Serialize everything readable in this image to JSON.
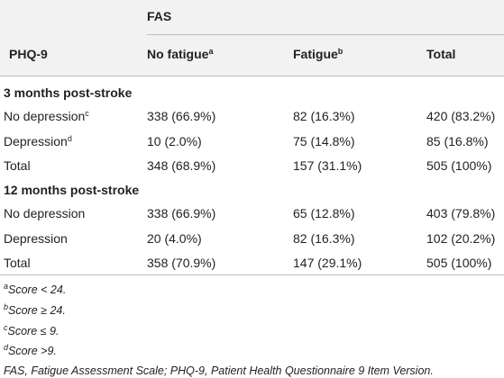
{
  "table": {
    "group_header": "FAS",
    "header": [
      {
        "text": "PHQ-9"
      },
      {
        "text": "No fatigue",
        "sup": "a"
      },
      {
        "text": "Fatigue",
        "sup": "b"
      },
      {
        "text": "Total"
      }
    ],
    "sections": [
      {
        "title": "3 months post-stroke",
        "rows": [
          {
            "label": "No depression",
            "sup": "c",
            "values": [
              "338 (66.9%)",
              "82 (16.3%)",
              "420 (83.2%)"
            ]
          },
          {
            "label": "Depression",
            "sup": "d",
            "values": [
              "10 (2.0%)",
              "75 (14.8%)",
              "85 (16.8%)"
            ]
          },
          {
            "label": "Total",
            "values": [
              "348 (68.9%)",
              "157 (31.1%)",
              "505 (100%)"
            ]
          }
        ]
      },
      {
        "title": "12 months post-stroke",
        "rows": [
          {
            "label": "No depression",
            "values": [
              "338 (66.9%)",
              "65 (12.8%)",
              "403 (79.8%)"
            ]
          },
          {
            "label": "Depression",
            "values": [
              "20 (4.0%)",
              "82 (16.3%)",
              "102 (20.2%)"
            ]
          },
          {
            "label": "Total",
            "values": [
              "358 (70.9%)",
              "147 (29.1%)",
              "505 (100%)"
            ]
          }
        ]
      }
    ]
  },
  "footnotes": [
    {
      "sup": "a",
      "text": "Score < 24."
    },
    {
      "sup": "b",
      "text": "Score ≥ 24."
    },
    {
      "sup": "c",
      "text": "Score ≤ 9."
    },
    {
      "sup": "d",
      "text": "Score >9."
    },
    {
      "text": "FAS, Fatigue Assessment Scale; PHQ-9, Patient Health Questionnaire 9 Item Version."
    }
  ]
}
